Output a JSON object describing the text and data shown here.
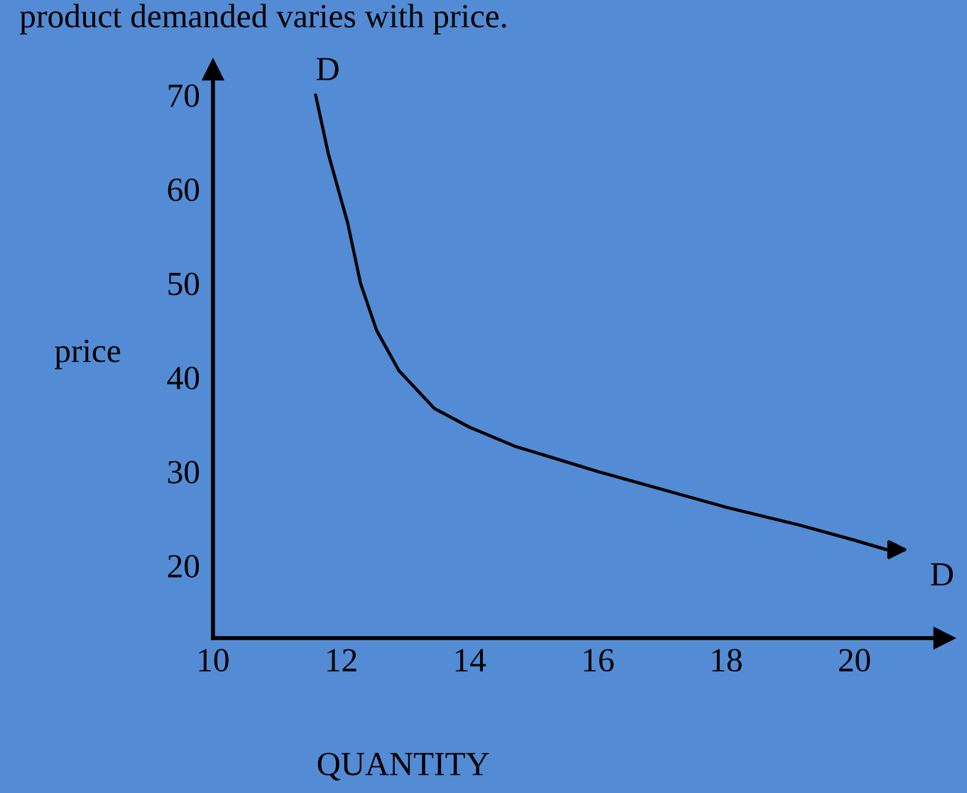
{
  "chart_data": {
    "type": "line",
    "title": "product demanded varies with price.",
    "xlabel": "QUANTITY",
    "ylabel": "price",
    "x": [
      11.6,
      11.8,
      12.1,
      12.3,
      12.55,
      12.9,
      13.45,
      14,
      14.7,
      16,
      18,
      19.15,
      20,
      20.5
    ],
    "series": [
      {
        "color": "#000000",
        "values": [
          70,
          63.7,
          56.4,
          50,
          45,
          40.7,
          36.7,
          34.7,
          32.7,
          30,
          26.2,
          24.3,
          22.7,
          21.7
        ]
      }
    ],
    "xlim": [
      10,
      21.4
    ],
    "ylim": [
      12.3,
      72.7
    ],
    "xticks": [
      10,
      12,
      14,
      16,
      18,
      20
    ],
    "yticks": [
      20,
      30,
      40,
      50,
      60,
      70
    ],
    "annotations": [
      {
        "text": "D",
        "x": 11.6,
        "y": 70
      },
      {
        "text": "D",
        "x": 20.5,
        "y": 21.7
      }
    ],
    "grid": false,
    "marker": "none",
    "line_style": "solid"
  }
}
